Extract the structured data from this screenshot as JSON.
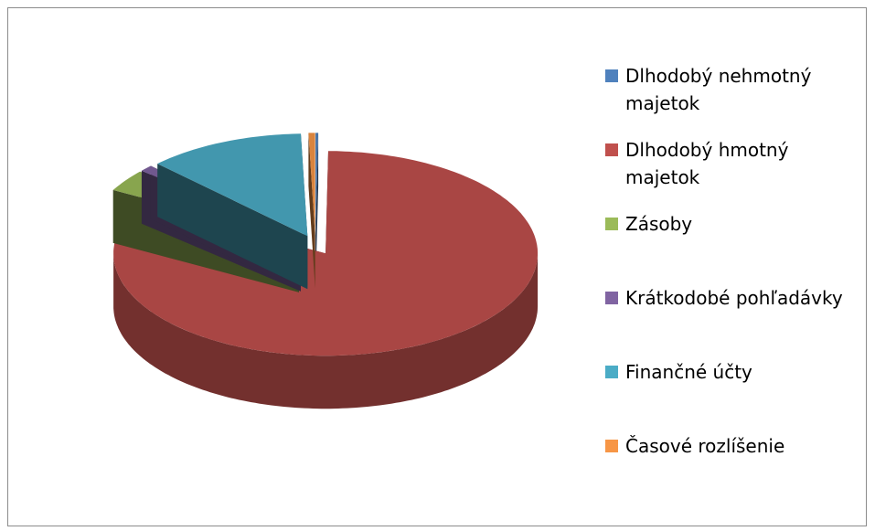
{
  "chart_data": {
    "type": "pie",
    "categories": [
      "Dlhodobý nehmotný majetok",
      "Dlhodobý hmotný majetok",
      "Zásoby",
      "Krátkodobé pohľadávky",
      "Finančné účty",
      "Časové rozlíšenie"
    ],
    "values": [
      0.2,
      82.8,
      3.5,
      1,
      12,
      0.5
    ],
    "colors": [
      "#4f81bd",
      "#c0504d",
      "#9bbb59",
      "#8064a2",
      "#4bacc6",
      "#f79646"
    ],
    "legend": "right"
  }
}
